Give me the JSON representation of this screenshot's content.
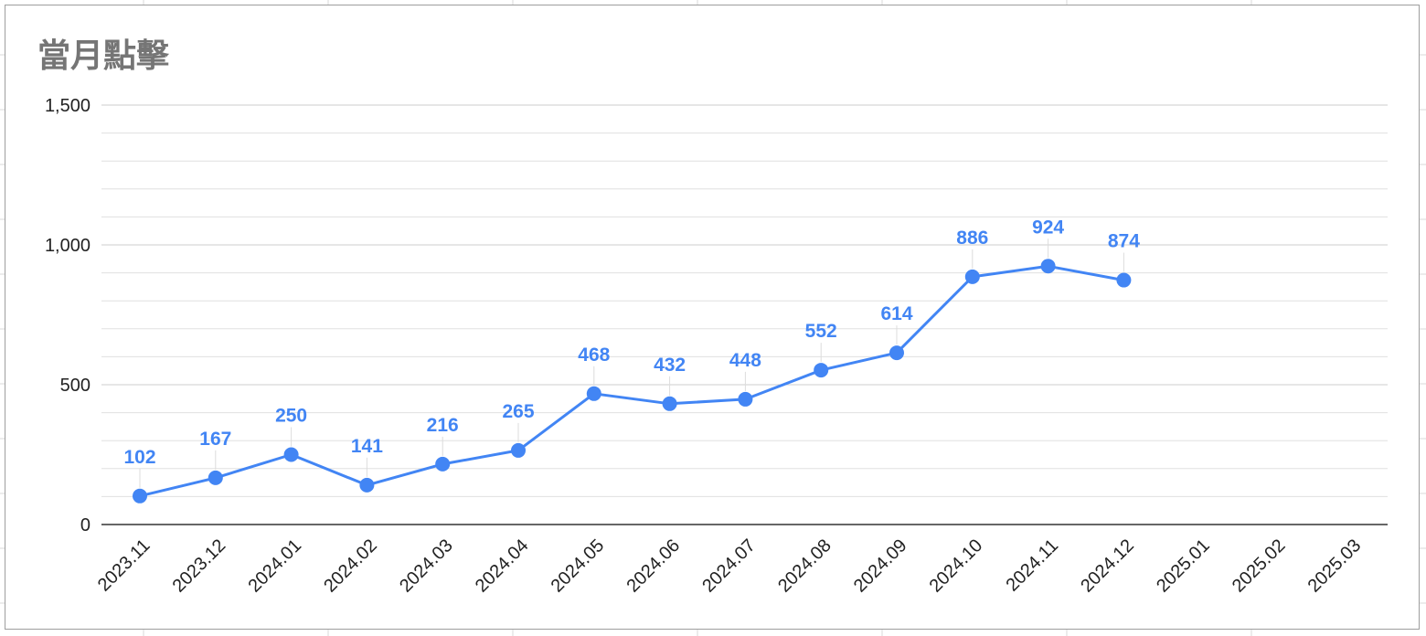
{
  "chart_data": {
    "type": "line",
    "title": "當月點擊",
    "xlabel": "",
    "ylabel": "",
    "x": [
      "2023.11",
      "2023.12",
      "2024.01",
      "2024.02",
      "2024.03",
      "2024.04",
      "2024.05",
      "2024.06",
      "2024.07",
      "2024.08",
      "2024.09",
      "2024.10",
      "2024.11",
      "2024.12",
      "2025.01",
      "2025.02",
      "2025.03"
    ],
    "series": [
      {
        "values": [
          102,
          167,
          250,
          141,
          216,
          265,
          468,
          432,
          448,
          552,
          614,
          886,
          924,
          874,
          null,
          null,
          null
        ]
      }
    ],
    "ylim": [
      0,
      1500
    ],
    "y_ticks": [
      0,
      500,
      1000,
      1500
    ],
    "y_tick_labels": [
      "0",
      "500",
      "1,000",
      "1,500"
    ],
    "grid": true,
    "data_labels": true,
    "colors": {
      "series": "#4285f4",
      "label": "#4285f4",
      "gridline": "#e0e0e0",
      "major_gridline": "#cccccc",
      "axis": "#333333",
      "title": "#757575"
    }
  }
}
